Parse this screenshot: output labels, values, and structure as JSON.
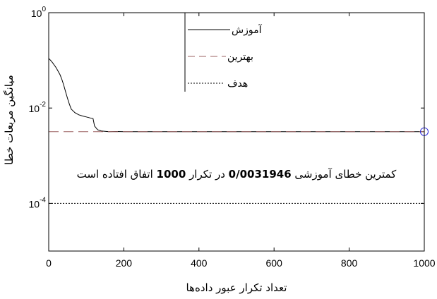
{
  "chart_data": {
    "type": "line",
    "xlabel": "تعداد تکرار عبور داده‌ها",
    "ylabel": "میانگین مربعات خطا",
    "xlim": [
      0,
      1000
    ],
    "ylim": [
      1e-05,
      1
    ],
    "yscale": "log",
    "grid": false,
    "xticks": [
      "0",
      "200",
      "400",
      "600",
      "800",
      "1000"
    ],
    "yticks": [
      {
        "base": "10",
        "exp": "0",
        "value": 1
      },
      {
        "base": "10",
        "exp": "-2",
        "value": 0.01
      },
      {
        "base": "10",
        "exp": "-4",
        "value": 0.0001
      }
    ],
    "legend_position": "top-center",
    "series": [
      {
        "name": "آموزش",
        "style": "solid",
        "color": "#000000",
        "x": [
          0,
          5,
          10,
          20,
          30,
          35,
          40,
          45,
          50,
          55,
          60,
          70,
          80,
          90,
          100,
          110,
          118,
          122,
          130,
          140,
          160,
          180,
          200,
          250,
          300,
          400,
          500,
          600,
          700,
          800,
          900,
          1000
        ],
        "y": [
          0.11,
          0.1,
          0.09,
          0.07,
          0.05,
          0.04,
          0.03,
          0.022,
          0.016,
          0.012,
          0.0095,
          0.008,
          0.0072,
          0.0068,
          0.0065,
          0.0062,
          0.006,
          0.0042,
          0.0035,
          0.0033,
          0.0032,
          0.00322,
          0.0032,
          0.0032,
          0.0032,
          0.0032,
          0.0032,
          0.0032,
          0.0032,
          0.0032,
          0.0032,
          0.0031946
        ]
      },
      {
        "name": "بهترین",
        "style": "dashed",
        "color": "#9b6060",
        "x": [
          0,
          1000
        ],
        "y": [
          0.0031946,
          0.0031946
        ]
      },
      {
        "name": "هدف",
        "style": "dotted",
        "color": "#000000",
        "x": [
          0,
          1000
        ],
        "y": [
          0.0001,
          0.0001
        ]
      }
    ],
    "marker": {
      "x": 1000,
      "y": 0.0031946,
      "shape": "circle",
      "color": "#2a2ad8"
    },
    "annotation": {
      "parts": [
        {
          "text": "کمترین خطای آموزشی ",
          "bold": false
        },
        {
          "text": "0/0031946",
          "bold": true
        },
        {
          "text": " در تکرار ",
          "bold": false
        },
        {
          "text": "1000",
          "bold": true
        },
        {
          "text": " اتفاق افتاده  است",
          "bold": false
        }
      ]
    }
  }
}
